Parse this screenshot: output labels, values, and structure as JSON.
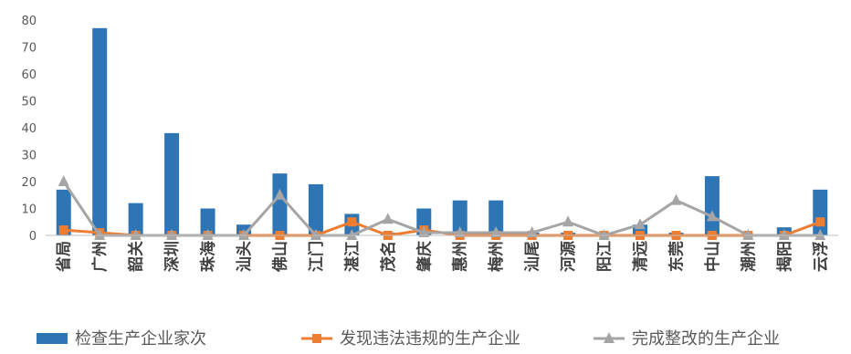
{
  "chart_data": {
    "type": "bar",
    "title": "",
    "xlabel": "",
    "ylabel": "",
    "ylim": [
      0,
      80
    ],
    "yticks": [
      0,
      10,
      20,
      30,
      40,
      50,
      60,
      70,
      80
    ],
    "grid": false,
    "legend_position": "bottom",
    "categories": [
      "省局",
      "广州",
      "韶关",
      "深圳",
      "珠海",
      "汕头",
      "佛山",
      "江门",
      "湛江",
      "茂名",
      "肇庆",
      "惠州",
      "梅州",
      "汕尾",
      "河源",
      "阳江",
      "清远",
      "东莞",
      "中山",
      "潮州",
      "揭阳",
      "云浮"
    ],
    "series": [
      {
        "name": "检查生产企业家次",
        "type": "bar",
        "color": "#2E75B6",
        "values": [
          17,
          77,
          12,
          38,
          10,
          4,
          23,
          19,
          8,
          1,
          10,
          13,
          13,
          1,
          1,
          1,
          4,
          1,
          22,
          0,
          3,
          17
        ]
      },
      {
        "name": "发现违法违规的生产企业",
        "type": "line",
        "marker": "square",
        "color": "#ED7D31",
        "values": [
          2,
          1,
          0,
          0,
          0,
          0,
          0,
          0,
          5,
          0,
          2,
          0,
          0,
          0,
          0,
          0,
          0,
          0,
          0,
          0,
          0,
          5
        ]
      },
      {
        "name": "完成整改的生产企业",
        "type": "line",
        "marker": "triangle",
        "color": "#A5A5A5",
        "values": [
          20,
          0,
          0,
          0,
          0,
          0,
          15,
          0,
          0,
          6,
          1,
          1,
          1,
          1,
          5,
          0,
          4,
          13,
          7,
          0,
          0,
          0
        ]
      }
    ]
  }
}
